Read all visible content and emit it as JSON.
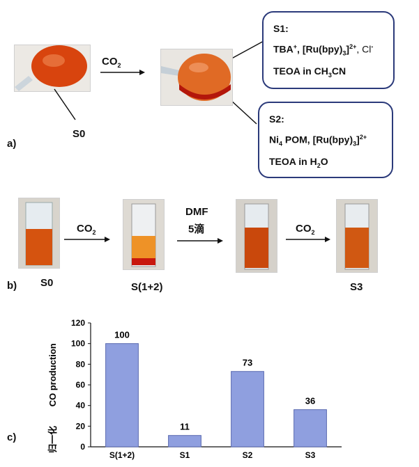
{
  "panel_a": {
    "label": "a)",
    "s0_label": "S0",
    "arrow_label": "CO",
    "arrow_sub": "2",
    "callout_s1": {
      "title": "S1:",
      "line1": "TBA",
      "line1_sup": "+",
      "line1_b": ", [Ru(bpy)",
      "line1_sub": "3",
      "line1_c": "]",
      "line1_sup2": "2+",
      "line1_d": ", Cl",
      "line1_sup3": "-",
      "line2": "TEOA in CH",
      "line2_sub": "3",
      "line2_b": "CN"
    },
    "callout_s2": {
      "title": "S2:",
      "line1": "Ni",
      "line1_sub": "4",
      "line1_b": " POM, [Ru(bpy)",
      "line1_sub2": "3",
      "line1_c": "]",
      "line1_sup": "2+",
      "line2": "TEOA in H",
      "line2_sub": "2",
      "line2_b": "O"
    }
  },
  "panel_b": {
    "label": "b)",
    "s0": "S0",
    "arrow1": "CO",
    "arrow1_sub": "2",
    "s12": "S(1+2)",
    "dmf": "DMF",
    "drops": "5滴",
    "arrow3": "CO",
    "arrow3_sub": "2",
    "s3": "S3"
  },
  "panel_c": {
    "label": "c)"
  },
  "colors": {
    "bar": "#8f9fdf",
    "bar_stroke": "#5a6ab0",
    "callout_border": "#2b3a7a",
    "liquid": "#d2460c"
  },
  "chart_data": {
    "type": "bar",
    "categories": [
      "S(1+2)",
      "S1",
      "S2",
      "S3"
    ],
    "values": [
      100,
      11,
      73,
      36
    ],
    "data_labels": [
      "100",
      "11",
      "73",
      "36"
    ],
    "ylabel": "CO production",
    "ylabel_b": "归一化",
    "ylim": [
      0,
      120
    ],
    "yticks": [
      "0",
      "20",
      "40",
      "60",
      "80",
      "100",
      "120"
    ],
    "grid": false
  }
}
